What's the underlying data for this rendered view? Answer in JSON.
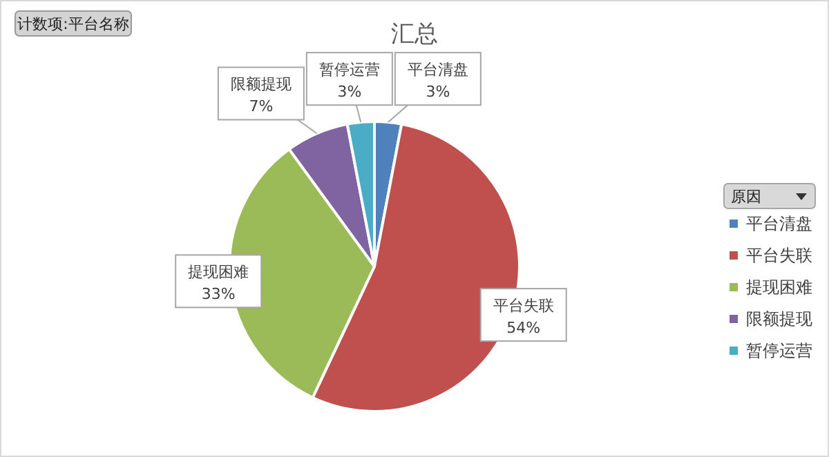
{
  "chart_data": {
    "type": "pie",
    "title": "汇总",
    "categories": [
      "平台清盘",
      "平台失联",
      "提现困难",
      "限额提现",
      "暂停运营"
    ],
    "values": [
      3,
      54,
      33,
      7,
      3
    ],
    "colors": [
      "#4f81bd",
      "#c0504d",
      "#9bbb59",
      "#8064a2",
      "#4bacc6"
    ],
    "value_labels": [
      "3%",
      "54%",
      "33%",
      "7%",
      "3%"
    ],
    "legend": "right",
    "legend_title": "原因",
    "annotations": [
      "计数项:平台名称"
    ]
  }
}
